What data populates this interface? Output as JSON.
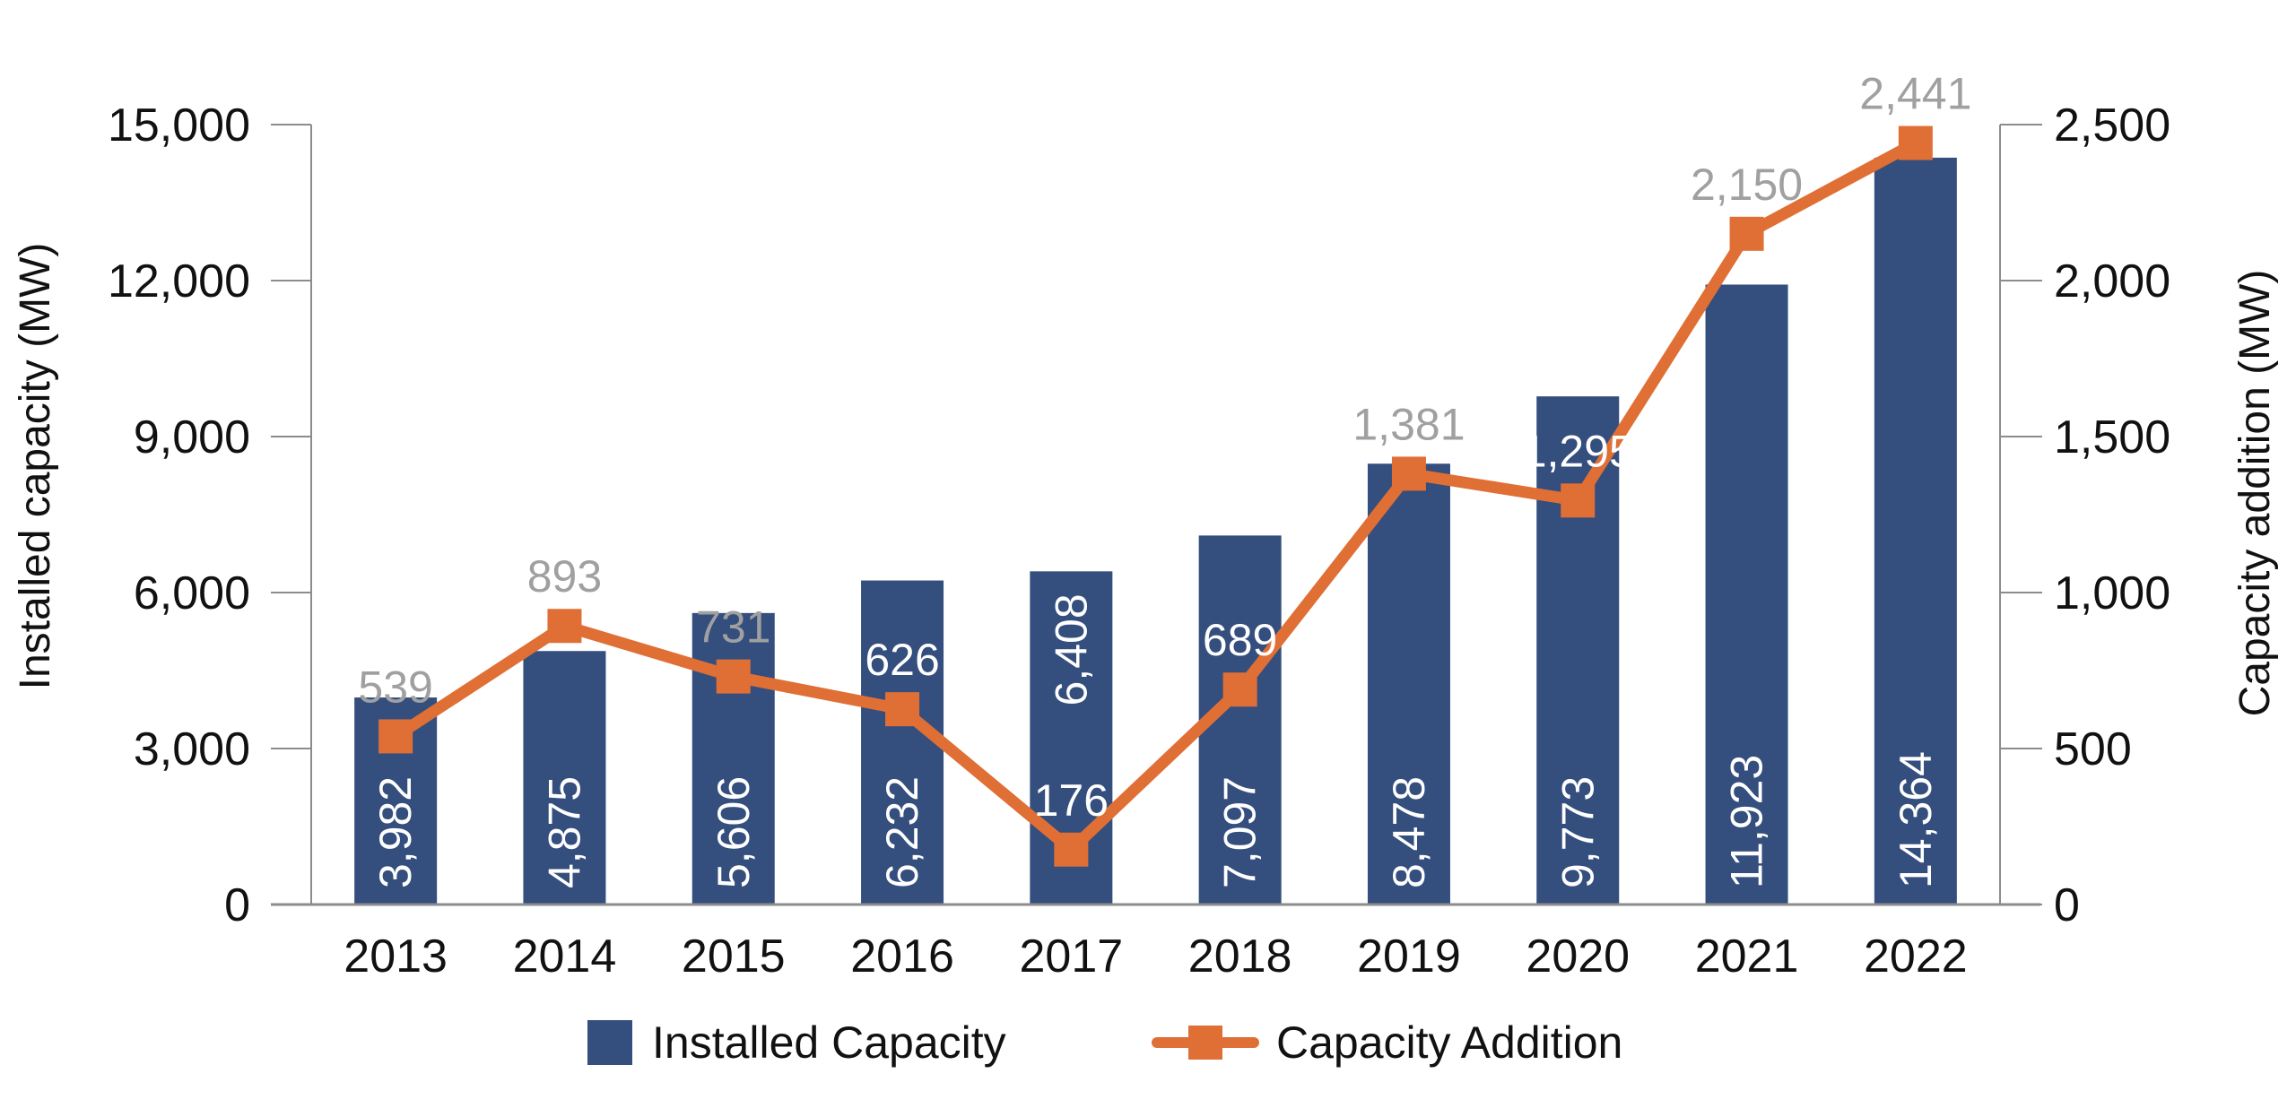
{
  "chart_data": {
    "type": "bar+line",
    "title": "",
    "categories": [
      "2013",
      "2014",
      "2015",
      "2016",
      "2017",
      "2018",
      "2019",
      "2020",
      "2021",
      "2022"
    ],
    "series": [
      {
        "name": "Installed Capacity",
        "type": "bar",
        "axis": "left",
        "color": "#344e7e",
        "values": [
          3982,
          4875,
          5606,
          6232,
          6408,
          7097,
          8478,
          9773,
          11923,
          14364
        ],
        "labels": [
          "3,982",
          "4,875",
          "5,606",
          "6,232",
          "6,408",
          "7,097",
          "8,478",
          "9,773",
          "11,923",
          "14,364"
        ]
      },
      {
        "name": "Capacity Addition",
        "type": "line",
        "axis": "right",
        "color": "#e06f35",
        "values": [
          539,
          893,
          731,
          626,
          176,
          689,
          1381,
          1295,
          2150,
          2441
        ],
        "labels": [
          "539",
          "893",
          "731",
          "626",
          "176",
          "689",
          "1,381",
          "1,295",
          "2,150",
          "2,441"
        ]
      }
    ],
    "y_left": {
      "label": "Installed capacity (MW)",
      "range": [
        0,
        15000
      ],
      "ticks": [
        0,
        3000,
        6000,
        9000,
        12000,
        15000
      ],
      "tick_labels": [
        "0",
        "3,000",
        "6,000",
        "9,000",
        "12,000",
        "15,000"
      ]
    },
    "y_right": {
      "label": "Capacity addition (MW)",
      "range": [
        0,
        2500
      ],
      "ticks": [
        0,
        500,
        1000,
        1500,
        2000,
        2500
      ],
      "tick_labels": [
        "0",
        "500",
        "1,000",
        "1,500",
        "2,000",
        "2,500"
      ]
    },
    "grid": false,
    "legend": {
      "position": "bottom",
      "entries": [
        "Installed Capacity",
        "Capacity Addition"
      ]
    },
    "label_colors": {
      "outside_bar": "#a0a0a0",
      "inside_bar": "#ffffff"
    }
  }
}
